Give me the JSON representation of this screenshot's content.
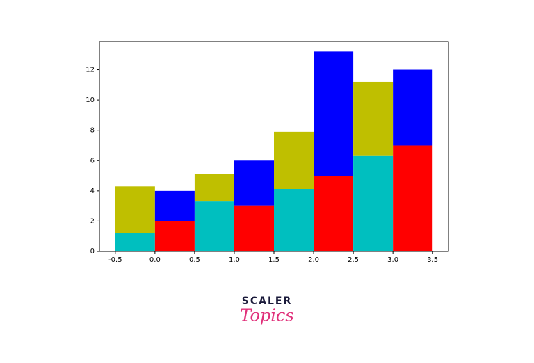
{
  "chart_data": {
    "type": "stacked_bar",
    "x": [
      -0.25,
      0.25,
      0.75,
      1.25,
      1.75,
      2.25,
      2.75,
      3.25
    ],
    "width": 0.5,
    "series": [
      {
        "colors": [
          "#00bfbf",
          "#ff0000",
          "#00bfbf",
          "#ff0000",
          "#00bfbf",
          "#ff0000",
          "#00bfbf",
          "#ff0000"
        ],
        "values": [
          1.2,
          2,
          3.3,
          3,
          4.1,
          5,
          6.3,
          7
        ]
      },
      {
        "colors": [
          "#bfbf00",
          "#0000ff",
          "#bfbf00",
          "#0000ff",
          "#bfbf00",
          "#0000ff",
          "#bfbf00",
          "#0000ff"
        ],
        "values": [
          3.1,
          2,
          1.8,
          3,
          3.8,
          8.2,
          4.9,
          5
        ]
      }
    ],
    "xlim": [
      -0.7,
      3.7
    ],
    "xticks": [
      -0.5,
      {
        "value": 0,
        "label": "0.0"
      },
      0.5,
      {
        "value": 1,
        "label": "1.0"
      },
      1.5,
      {
        "value": 2,
        "label": "2.0"
      },
      2.5,
      {
        "value": 3,
        "label": "3.0"
      },
      3.5
    ],
    "ylim": [
      0,
      13.86
    ],
    "yticks": [
      0,
      2,
      4,
      6,
      8,
      10,
      12
    ],
    "grid": false
  },
  "logo": {
    "brand": "SCALER",
    "product": "Topics"
  }
}
